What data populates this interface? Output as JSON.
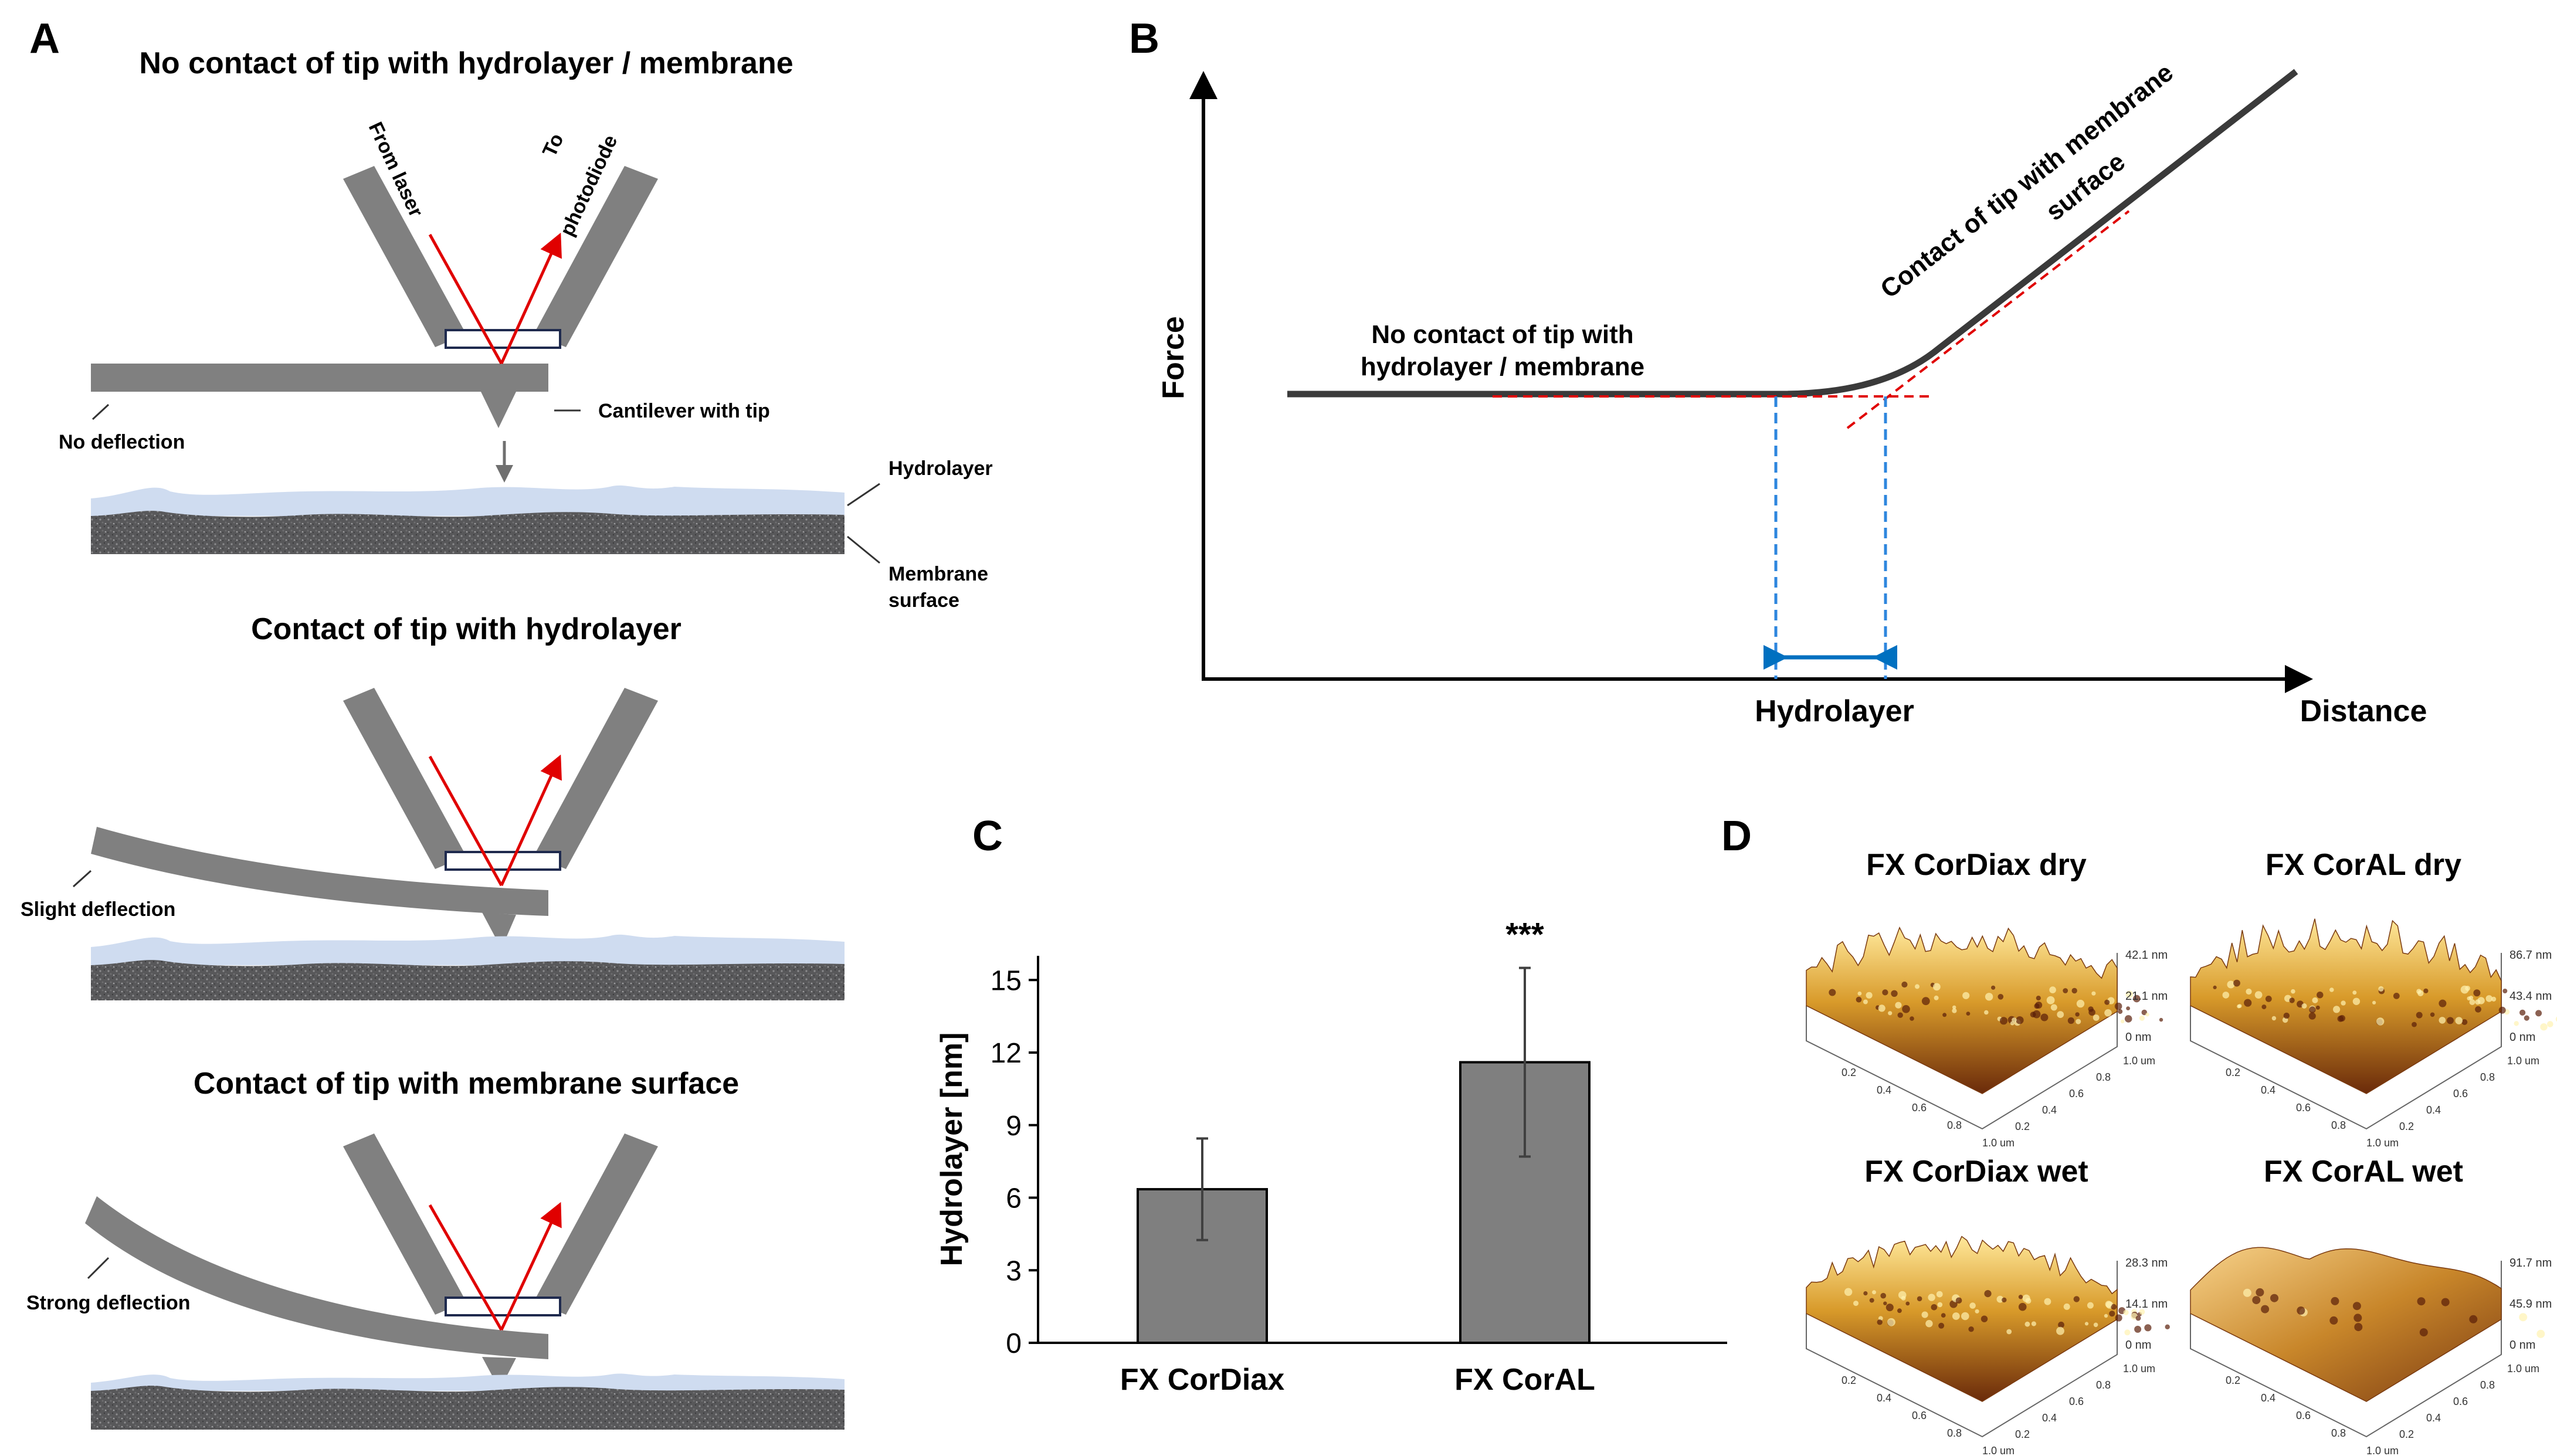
{
  "panel_a": {
    "letter": "A",
    "title_1": "No contact of tip with hydrolayer / membrane",
    "title_2": "Contact of tip with hydrolayer",
    "title_3": "Contact of tip with membrane surface",
    "label_from_laser": "From laser",
    "label_to": "To",
    "label_photodiode": "photodiode",
    "label_cantilever": "Cantilever with tip",
    "label_no_deflection": "No deflection",
    "label_slight_deflection": "Slight deflection",
    "label_strong_deflection": "Strong deflection",
    "label_hydrolayer": "Hydrolayer",
    "label_membrane_1": "Membrane",
    "label_membrane_2": "surface"
  },
  "panel_b": {
    "letter": "B",
    "ylabel": "Force",
    "xlabel": "Distance",
    "hydrolayer_label": "Hydrolayer",
    "no_contact_1": "No contact of tip with",
    "no_contact_2": "hydrolayer / membrane",
    "contact_1": "Contact of tip with membrane",
    "contact_2": "surface"
  },
  "panel_c": {
    "letter": "C",
    "significance": "***"
  },
  "panel_d": {
    "letter": "D",
    "titles": [
      "FX CorDiax dry",
      "FX CorAL dry",
      "FX CorDiax wet",
      "FX CorAL wet"
    ],
    "scales": [
      [
        "42.1 nm",
        "21.1 nm",
        "0 nm"
      ],
      [
        "86.7 nm",
        "43.4 nm",
        "0 nm"
      ],
      [
        "28.3 nm",
        "14.1 nm",
        "0 nm"
      ],
      [
        "91.7 nm",
        "45.9 nm",
        "0 nm"
      ]
    ],
    "axis_ticks": [
      "0.2",
      "0.4",
      "0.6",
      "0.8",
      "1.0 um"
    ]
  },
  "chart_data": {
    "type": "bar",
    "categories": [
      "FX CorDiax",
      "FX CorAL"
    ],
    "values": [
      6.35,
      11.6
    ],
    "errors": [
      2.1,
      3.9
    ],
    "ylabel": "Hydrolayer [nm]",
    "xlabel": "",
    "ylim": [
      0,
      16
    ],
    "yticks": [
      0,
      3,
      6,
      9,
      12,
      15
    ],
    "bar_color": "#7f7f7f",
    "annotations": [
      {
        "category": "FX CorAL",
        "text": "***"
      }
    ]
  }
}
